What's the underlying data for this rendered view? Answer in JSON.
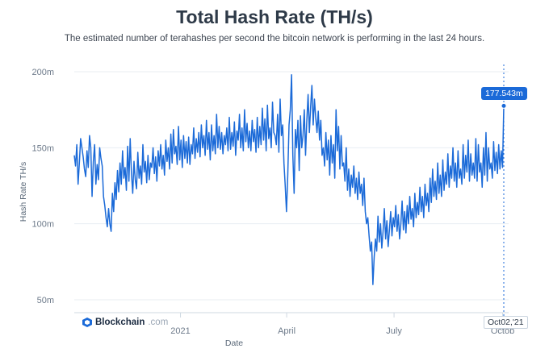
{
  "header": {
    "title": "Total Hash Rate (TH/s)",
    "subtitle": "The estimated number of terahashes per second the bitcoin network is performing in the last 24 hours."
  },
  "brand": {
    "name": "Blockchain",
    "tld": ".com"
  },
  "tooltip": {
    "value_label": "177.543m",
    "date_label": "Oct02,'21"
  },
  "colors": {
    "line": "#1b6ad8",
    "grid": "#e8edf2",
    "tooltip_bg": "#1b6ad8"
  },
  "chart_data": {
    "type": "line",
    "title": "Total Hash Rate (TH/s)",
    "xlabel": "Date",
    "ylabel": "Hash Rate TH/s",
    "ylim": [
      40,
      200
    ],
    "y_ticks": [
      50,
      100,
      150,
      200
    ],
    "y_tick_labels": [
      "50m",
      "100m",
      "150m",
      "200m"
    ],
    "x_tick_labels": [
      "2021",
      "April",
      "July",
      "Octob"
    ],
    "x_tick_dates": [
      "2021-01-01",
      "2021-04-01",
      "2021-07-01",
      "2021-10-01"
    ],
    "x_start": "2020-10-03",
    "x_end": "2021-10-02",
    "grid": true,
    "highlight": {
      "x": "2021-10-02",
      "y": 177.543
    },
    "series": [
      {
        "values": [
          145,
          138,
          152,
          126,
          140,
          156,
          150,
          144,
          136,
          131,
          148,
          137,
          158,
          150,
          118,
          141,
          152,
          126,
          139,
          129,
          150,
          143,
          138,
          118,
          112,
          104,
          98,
          110,
          100,
          95,
          120,
          108,
          127,
          116,
          135,
          121,
          140,
          126,
          148,
          130,
          137,
          122,
          151,
          128,
          156,
          133,
          120,
          141,
          129,
          123,
          147,
          130,
          138,
          126,
          152,
          134,
          141,
          127,
          145,
          129,
          140,
          137,
          150,
          133,
          144,
          128,
          148,
          138,
          152,
          136,
          145,
          132,
          155,
          141,
          150,
          136,
          159,
          140,
          162,
          146,
          151,
          139,
          164,
          142,
          155,
          137,
          158,
          143,
          154,
          140,
          157,
          139,
          152,
          146,
          163,
          143,
          156,
          147,
          160,
          144,
          165,
          150,
          158,
          145,
          168,
          149,
          160,
          142,
          165,
          148,
          158,
          146,
          172,
          150,
          164,
          149,
          160,
          146,
          158,
          152,
          163,
          148,
          170,
          149,
          160,
          151,
          167,
          145,
          161,
          155,
          172,
          150,
          163,
          148,
          175,
          154,
          166,
          150,
          161,
          148,
          168,
          154,
          162,
          147,
          170,
          150,
          164,
          152,
          176,
          155,
          169,
          148,
          178,
          156,
          163,
          150,
          180,
          160,
          158,
          152,
          172,
          147,
          182,
          158,
          165,
          140,
          125,
          108,
          132,
          165,
          175,
          198,
          145,
          120,
          162,
          150,
          168,
          135,
          171,
          150,
          158,
          175,
          145,
          168,
          185,
          160,
          177,
          191,
          165,
          182,
          170,
          160,
          174,
          155,
          168,
          145,
          150,
          138,
          160,
          142,
          155,
          132,
          158,
          140,
          152,
          130,
          175,
          148,
          164,
          136,
          158,
          138,
          140,
          128,
          150,
          122,
          136,
          118,
          132,
          124,
          138,
          120,
          130,
          116,
          134,
          120,
          126,
          112,
          130,
          108,
          100,
          104,
          92,
          82,
          88,
          60,
          78,
          90,
          82,
          105,
          88,
          100,
          84,
          95,
          110,
          90,
          102,
          85,
          96,
          108,
          92,
          104,
          98,
          112,
          95,
          106,
          90,
          100,
          115,
          96,
          108,
          94,
          112,
          100,
          118,
          103,
          110,
          98,
          120,
          104,
          114,
          106,
          124,
          108,
          118,
          104,
          126,
          112,
          120,
          108,
          130,
          114,
          136,
          118,
          128,
          116,
          140,
          120,
          132,
          118,
          142,
          122,
          134,
          126,
          146,
          124,
          138,
          130,
          150,
          128,
          140,
          124,
          148,
          130,
          136,
          126,
          152,
          130,
          145,
          134,
          155,
          128,
          146,
          132,
          140,
          130,
          156,
          128,
          152,
          134,
          140,
          124,
          150,
          132,
          160,
          128,
          150,
          136,
          140,
          130,
          154,
          135,
          147,
          133,
          152,
          136,
          148,
          137,
          177.543
        ]
      }
    ]
  }
}
